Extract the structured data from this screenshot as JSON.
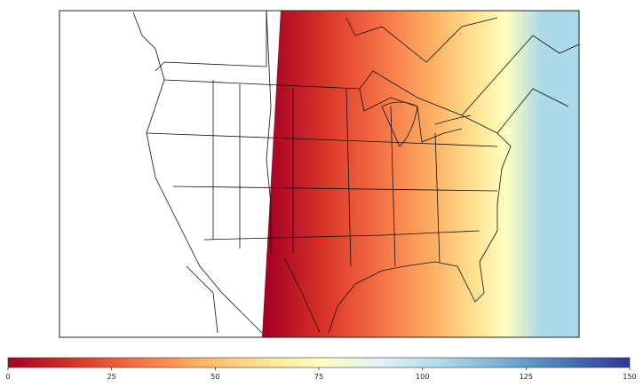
{
  "colorbar": {
    "min": 0,
    "max": 150,
    "ticks": [
      0,
      25,
      50,
      75,
      100,
      125,
      150
    ]
  }
}
